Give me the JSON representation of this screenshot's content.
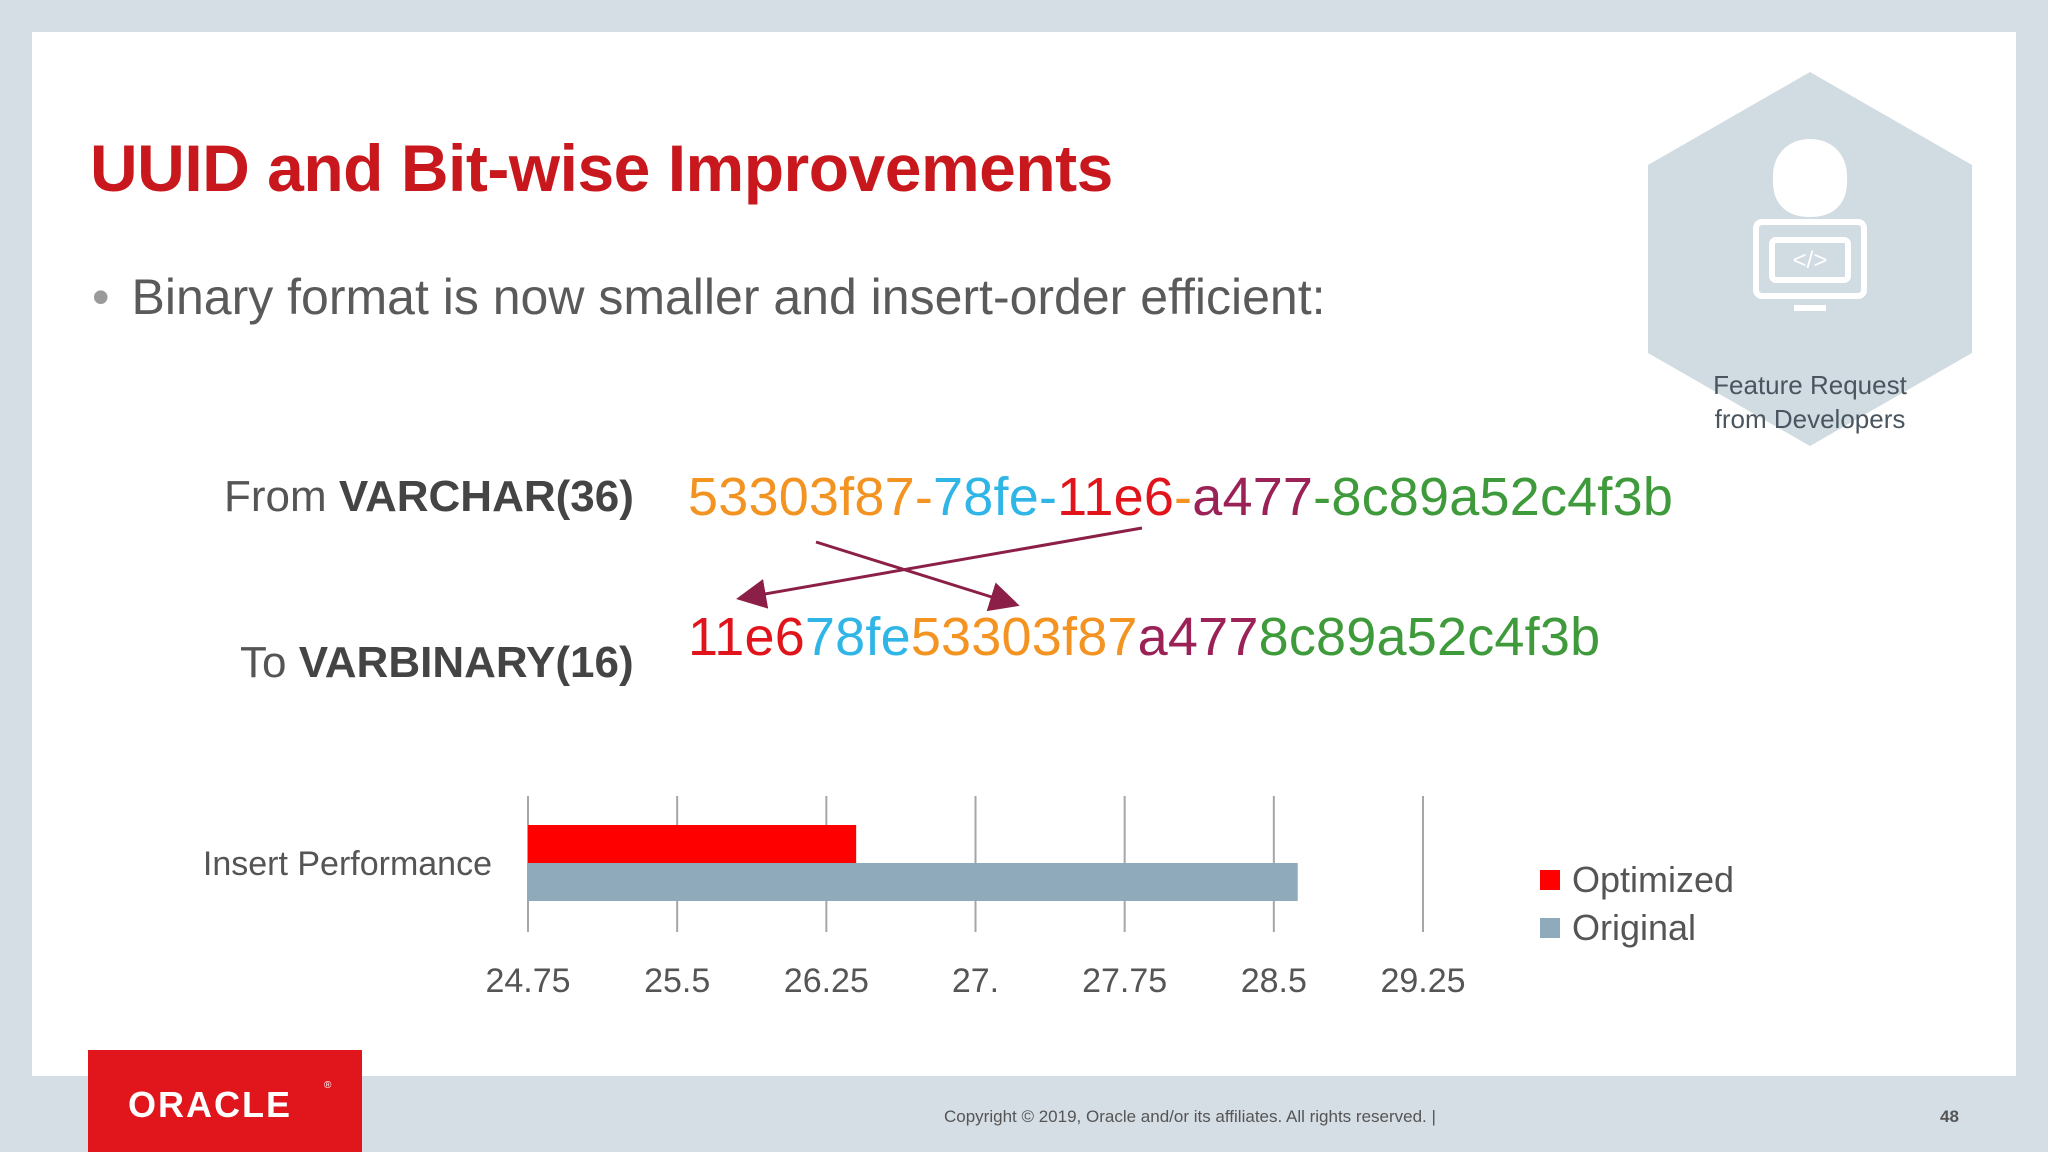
{
  "slide": {
    "title": "UUID and Bit-wise Improvements",
    "bullet": "Binary format is now smaller and insert-order efficient:",
    "badge": {
      "line1": "Feature Request",
      "line2": "from Developers",
      "icon": "developer-icon",
      "code_glyph": "</>"
    },
    "from_label": {
      "prefix": "From ",
      "type": "VARCHAR(36)"
    },
    "to_label": {
      "prefix": "To ",
      "type": "VARBINARY(16)"
    },
    "uuid_from": [
      {
        "text": "53303f87",
        "color": "#f39321"
      },
      {
        "text": "-",
        "color": "#f39321"
      },
      {
        "text": "78fe",
        "color": "#2fb6e6"
      },
      {
        "text": "-",
        "color": "#2fb6e6"
      },
      {
        "text": "11e6",
        "color": "#e1141b"
      },
      {
        "text": "-",
        "color": "#f39321"
      },
      {
        "text": "a477",
        "color": "#9b2257"
      },
      {
        "text": "-",
        "color": "#3e9a3b"
      },
      {
        "text": "8c89a52c4f3b",
        "color": "#3e9a3b"
      }
    ],
    "uuid_to": [
      {
        "text": "11e6",
        "color": "#e1141b"
      },
      {
        "text": "78fe",
        "color": "#2fb6e6"
      },
      {
        "text": "53303f87",
        "color": "#f39321"
      },
      {
        "text": "a477",
        "color": "#9b2257"
      },
      {
        "text": "8c89a52c4f3b",
        "color": "#3e9a3b"
      }
    ],
    "arrow_color": "#8c1f47",
    "footer": {
      "logo": "ORACLE",
      "copyright": "Copyright © 2019, Oracle and/or its affiliates. All rights reserved.  |",
      "page": "48"
    }
  },
  "chart_data": {
    "type": "bar",
    "orientation": "horizontal",
    "categories": [
      "Insert Performance"
    ],
    "series": [
      {
        "name": "Optimized",
        "values": [
          26.4
        ],
        "color": "#ff0000"
      },
      {
        "name": "Original",
        "values": [
          28.62
        ],
        "color": "#8eaabb"
      }
    ],
    "xlim": [
      24.75,
      29.25
    ],
    "x_ticks": [
      "24.75",
      "25.5",
      "26.25",
      "27.",
      "27.75",
      "28.5",
      "29.25"
    ],
    "x_tick_values": [
      24.75,
      25.5,
      26.25,
      27.0,
      27.75,
      28.5,
      29.25
    ],
    "grid": "vertical",
    "legend_position": "right"
  }
}
